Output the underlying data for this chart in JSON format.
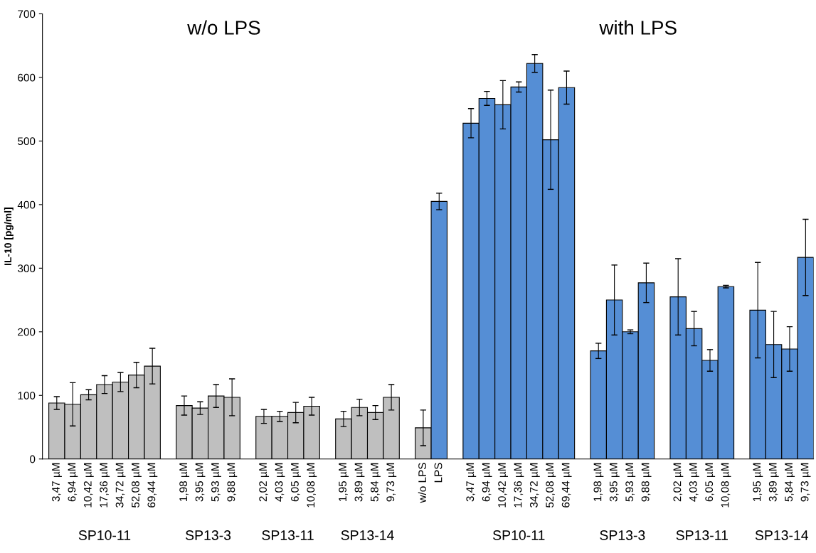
{
  "chart_data": {
    "type": "bar",
    "ylabel": "IL-10 [pg/ml]",
    "ylim": [
      0,
      700
    ],
    "yticks": [
      0,
      100,
      200,
      300,
      400,
      500,
      600,
      700
    ],
    "grid": false,
    "legend": false,
    "annotations": [
      "w/o LPS",
      "with LPS",
      "SP10-11",
      "SP13-3",
      "SP13-11",
      "SP13-14",
      "SP10-11",
      "SP13-3",
      "SP13-11",
      "SP13-14"
    ],
    "categories": [
      "3,47 µM",
      "6,94 µM",
      "10,42 µM",
      "17,36 µM",
      "34,72 µM",
      "52,08 µM",
      "69,44 µM",
      null,
      "1,98 µM",
      "3,95 µM",
      "5,93 µM",
      "9,88 µM",
      null,
      "2,02 µM",
      "4,03 µM",
      "6,05 µM",
      "10,08 µM",
      null,
      "1,95 µM",
      "3,89 µM",
      "5,84 µM",
      "9,73 µM",
      null,
      "w/o LPS",
      "LPS",
      null,
      "3,47 µM",
      "6,94 µM",
      "10,42 µM",
      "17,36 µM",
      "34,72 µM",
      "52,08 µM",
      "69,44 µM",
      null,
      "1,98 µM",
      "3,95 µM",
      "5,93 µM",
      "9,88 µM",
      null,
      "2,02 µM",
      "4,03 µM",
      "6,05 µM",
      "10,08 µM",
      null,
      "1,95 µM",
      "3,89 µM",
      "5,84 µM",
      "9,73 µM"
    ],
    "values": [
      88,
      86,
      101,
      117,
      121,
      132,
      146,
      null,
      84,
      80,
      99,
      97,
      null,
      67,
      67,
      73,
      83,
      null,
      63,
      81,
      73,
      97,
      null,
      49,
      405,
      null,
      528,
      567,
      557,
      585,
      622,
      502,
      584,
      null,
      170,
      250,
      200,
      277,
      null,
      255,
      205,
      155,
      271,
      null,
      234,
      180,
      173,
      317
    ],
    "errors": [
      10,
      34,
      8,
      14,
      15,
      20,
      28,
      null,
      15,
      10,
      18,
      29,
      null,
      11,
      8,
      16,
      14,
      null,
      12,
      13,
      11,
      20,
      null,
      28,
      13,
      null,
      23,
      11,
      38,
      8,
      14,
      78,
      26,
      null,
      12,
      55,
      3,
      31,
      null,
      60,
      27,
      17,
      2,
      null,
      75,
      52,
      35,
      60
    ],
    "colors": [
      "#bfbfbf",
      "#bfbfbf",
      "#bfbfbf",
      "#bfbfbf",
      "#bfbfbf",
      "#bfbfbf",
      "#bfbfbf",
      null,
      "#bfbfbf",
      "#bfbfbf",
      "#bfbfbf",
      "#bfbfbf",
      null,
      "#bfbfbf",
      "#bfbfbf",
      "#bfbfbf",
      "#bfbfbf",
      null,
      "#bfbfbf",
      "#bfbfbf",
      "#bfbfbf",
      "#bfbfbf",
      null,
      "#bfbfbf",
      "#558ed5",
      null,
      "#558ed5",
      "#558ed5",
      "#558ed5",
      "#558ed5",
      "#558ed5",
      "#558ed5",
      "#558ed5",
      null,
      "#558ed5",
      "#558ed5",
      "#558ed5",
      "#558ed5",
      null,
      "#558ed5",
      "#558ed5",
      "#558ed5",
      "#558ed5",
      null,
      "#558ed5",
      "#558ed5",
      "#558ed5",
      "#558ed5"
    ]
  }
}
